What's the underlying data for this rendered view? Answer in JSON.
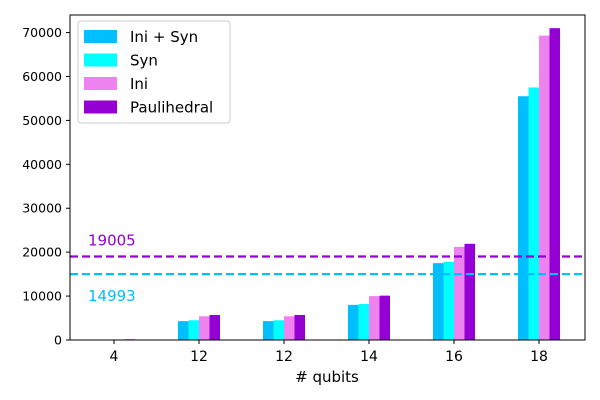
{
  "chart_data": {
    "type": "bar",
    "title": "",
    "xlabel": "# qubits",
    "ylabel": "",
    "categories": [
      "4",
      "12",
      "12",
      "14",
      "16",
      "18"
    ],
    "ylim": [
      0,
      74000
    ],
    "yticks": [
      0,
      10000,
      20000,
      30000,
      40000,
      50000,
      60000,
      70000
    ],
    "grid": false,
    "legend_position": "top-left",
    "series": [
      {
        "name": "Ini + Syn",
        "color": "#00bfff",
        "values": [
          20,
          4300,
          4300,
          8000,
          17500,
          55500
        ]
      },
      {
        "name": "Syn",
        "color": "#00ffff",
        "values": [
          22,
          4500,
          4500,
          8200,
          17800,
          57500
        ]
      },
      {
        "name": "Ini",
        "color": "#ee82ee",
        "values": [
          40,
          5400,
          5400,
          10000,
          21200,
          69300
        ]
      },
      {
        "name": "Paulihedral",
        "color": "#9400d3",
        "values": [
          160,
          5700,
          5700,
          10100,
          21900,
          71000
        ]
      }
    ],
    "reference_lines": [
      {
        "value": 19005,
        "label": "19005",
        "color": "#9400d3"
      },
      {
        "value": 14993,
        "label": "14993",
        "color": "#00bfff"
      }
    ]
  }
}
